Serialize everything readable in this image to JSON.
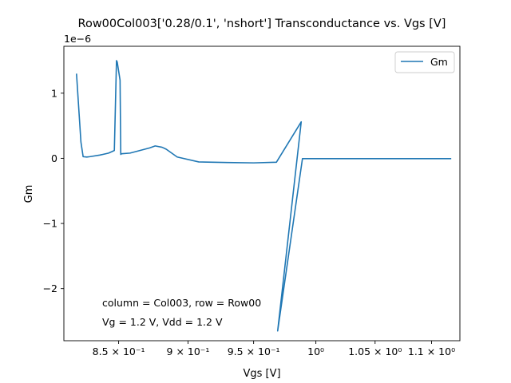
{
  "chart_data": {
    "type": "line",
    "title": "Row00Col003['0.28/0.1', 'nshort'] Transconductance vs. Vgs [V]",
    "xlabel": "Vgs [V]",
    "ylabel": "Gm",
    "y_offset_label": "1e−6",
    "xscale": "log",
    "xlim": [
      0.8125,
      1.126
    ],
    "ylim": [
      -2.8e-06,
      1.72e-06
    ],
    "xticks": [
      {
        "value": 0.85,
        "label": "8.5 × 10⁻¹"
      },
      {
        "value": 0.9,
        "label": "9 × 10⁻¹"
      },
      {
        "value": 0.95,
        "label": "9.5 × 10⁻¹"
      },
      {
        "value": 1.0,
        "label": "10⁰"
      },
      {
        "value": 1.05,
        "label": "1.05 × 10⁰"
      },
      {
        "value": 1.1,
        "label": "1.1 × 10⁰"
      }
    ],
    "yticks": [
      {
        "value": -2e-06,
        "label": "−2"
      },
      {
        "value": -1e-06,
        "label": "−1"
      },
      {
        "value": 0,
        "label": "0"
      },
      {
        "value": 1e-06,
        "label": "1"
      }
    ],
    "grid": false,
    "legend": {
      "position": "top-right"
    },
    "color": "#1f77b4",
    "series": [
      {
        "name": "Gm",
        "x": [
          0.821,
          0.824,
          0.8255,
          0.828,
          0.83,
          0.837,
          0.843,
          0.847,
          0.8485,
          0.849,
          0.851,
          0.8515,
          0.852,
          0.858,
          0.865,
          0.872,
          0.876,
          0.881,
          0.884,
          0.892,
          0.908,
          0.93,
          0.95,
          0.968,
          0.988,
          0.969,
          0.989,
          1.01,
          1.05,
          1.118
        ],
        "y": [
          1.3e-06,
          2.5e-07,
          2.5e-08,
          2e-08,
          2.5e-08,
          5e-08,
          8e-08,
          1.2e-07,
          1.5e-06,
          1.48e-06,
          1.2e-06,
          6e-08,
          7e-08,
          8e-08,
          1.2e-07,
          1.6e-07,
          1.9e-07,
          1.7e-07,
          1.4e-07,
          2e-08,
          -5.5e-08,
          -6.5e-08,
          -7e-08,
          -6e-08,
          5.6e-07,
          -2.65e-06,
          -5e-09,
          -5e-09,
          -5e-09,
          -5e-09
        ]
      }
    ],
    "annotations": [
      "column = Col003, row = Row00",
      "Vg = 1.2 V, Vdd = 1.2 V"
    ]
  }
}
